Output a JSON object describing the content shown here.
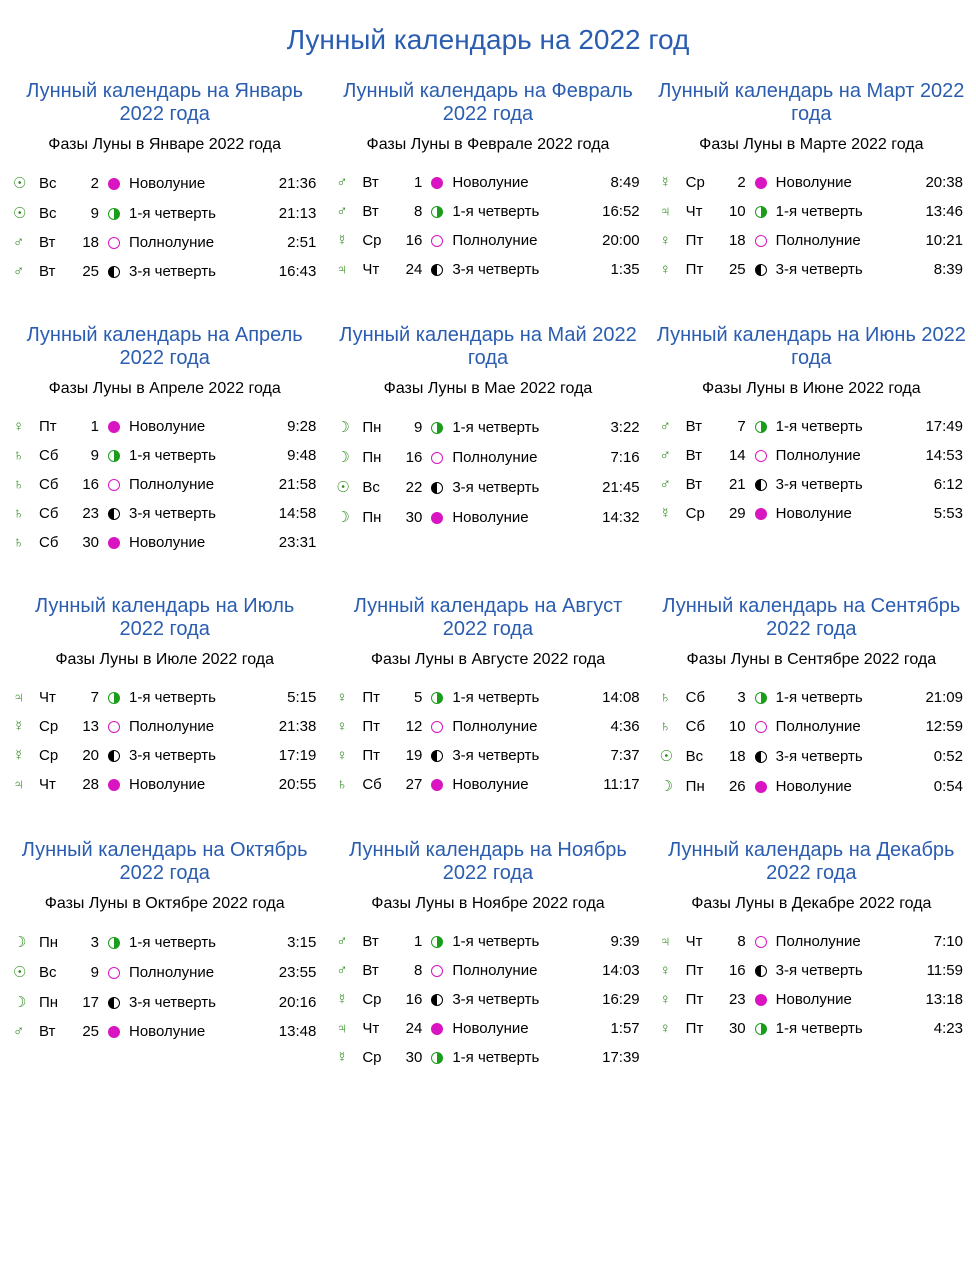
{
  "page_title": "Лунный календарь на 2022 год",
  "colors": {
    "heading": "#2a5db0",
    "planet_symbol": "#2e8b1e",
    "moon_new_fill": "#d815c1",
    "moon_full_ring": "#d815c1",
    "moon_first_fill": "#1a9d1a",
    "moon_third_fill": "#000000",
    "text": "#000000",
    "background": "#ffffff"
  },
  "planet_glyphs": {
    "sun": "☉",
    "moon": "☽",
    "mercury": "☿",
    "venus": "♀",
    "mars": "♂",
    "jupiter": "♃",
    "saturn": "♄"
  },
  "phase_icon_map": {
    "Новолуние": "moon-new",
    "1-я четверть": "moon-first",
    "Полнолуние": "moon-full",
    "3-я четверть": "moon-third"
  },
  "months": [
    {
      "title": "Лунный календарь на Январь 2022 года",
      "subtitle": "Фазы Луны в Январе 2022 года",
      "rows": [
        {
          "planet": "sun",
          "dow": "Вс",
          "day": "2",
          "phase": "Новолуние",
          "time": "21:36"
        },
        {
          "planet": "sun",
          "dow": "Вс",
          "day": "9",
          "phase": "1-я четверть",
          "time": "21:13"
        },
        {
          "planet": "mars",
          "dow": "Вт",
          "day": "18",
          "phase": "Полнолуние",
          "time": "2:51"
        },
        {
          "planet": "mars",
          "dow": "Вт",
          "day": "25",
          "phase": "3-я четверть",
          "time": "16:43"
        }
      ]
    },
    {
      "title": "Лунный календарь на Февраль 2022 года",
      "subtitle": "Фазы Луны в Феврале 2022 года",
      "rows": [
        {
          "planet": "mars",
          "dow": "Вт",
          "day": "1",
          "phase": "Новолуние",
          "time": "8:49"
        },
        {
          "planet": "mars",
          "dow": "Вт",
          "day": "8",
          "phase": "1-я четверть",
          "time": "16:52"
        },
        {
          "planet": "mercury",
          "dow": "Ср",
          "day": "16",
          "phase": "Полнолуние",
          "time": "20:00"
        },
        {
          "planet": "jupiter",
          "dow": "Чт",
          "day": "24",
          "phase": "3-я четверть",
          "time": "1:35"
        }
      ]
    },
    {
      "title": "Лунный календарь на Март 2022 года",
      "subtitle": "Фазы Луны в Марте 2022 года",
      "rows": [
        {
          "planet": "mercury",
          "dow": "Ср",
          "day": "2",
          "phase": "Новолуние",
          "time": "20:38"
        },
        {
          "planet": "jupiter",
          "dow": "Чт",
          "day": "10",
          "phase": "1-я четверть",
          "time": "13:46"
        },
        {
          "planet": "venus",
          "dow": "Пт",
          "day": "18",
          "phase": "Полнолуние",
          "time": "10:21"
        },
        {
          "planet": "venus",
          "dow": "Пт",
          "day": "25",
          "phase": "3-я четверть",
          "time": "8:39"
        }
      ]
    },
    {
      "title": "Лунный календарь на Апрель 2022 года",
      "subtitle": "Фазы Луны в Апреле 2022 года",
      "rows": [
        {
          "planet": "venus",
          "dow": "Пт",
          "day": "1",
          "phase": "Новолуние",
          "time": "9:28"
        },
        {
          "planet": "saturn",
          "dow": "Сб",
          "day": "9",
          "phase": "1-я четверть",
          "time": "9:48"
        },
        {
          "planet": "saturn",
          "dow": "Сб",
          "day": "16",
          "phase": "Полнолуние",
          "time": "21:58"
        },
        {
          "planet": "saturn",
          "dow": "Сб",
          "day": "23",
          "phase": "3-я четверть",
          "time": "14:58"
        },
        {
          "planet": "saturn",
          "dow": "Сб",
          "day": "30",
          "phase": "Новолуние",
          "time": "23:31"
        }
      ]
    },
    {
      "title": "Лунный календарь на Май 2022 года",
      "subtitle": "Фазы Луны в Мае 2022 года",
      "rows": [
        {
          "planet": "moon",
          "dow": "Пн",
          "day": "9",
          "phase": "1-я четверть",
          "time": "3:22"
        },
        {
          "planet": "moon",
          "dow": "Пн",
          "day": "16",
          "phase": "Полнолуние",
          "time": "7:16"
        },
        {
          "planet": "sun",
          "dow": "Вс",
          "day": "22",
          "phase": "3-я четверть",
          "time": "21:45"
        },
        {
          "planet": "moon",
          "dow": "Пн",
          "day": "30",
          "phase": "Новолуние",
          "time": "14:32"
        }
      ]
    },
    {
      "title": "Лунный календарь на Июнь 2022 года",
      "subtitle": "Фазы Луны в Июне 2022 года",
      "rows": [
        {
          "planet": "mars",
          "dow": "Вт",
          "day": "7",
          "phase": "1-я четверть",
          "time": "17:49"
        },
        {
          "planet": "mars",
          "dow": "Вт",
          "day": "14",
          "phase": "Полнолуние",
          "time": "14:53"
        },
        {
          "planet": "mars",
          "dow": "Вт",
          "day": "21",
          "phase": "3-я четверть",
          "time": "6:12"
        },
        {
          "planet": "mercury",
          "dow": "Ср",
          "day": "29",
          "phase": "Новолуние",
          "time": "5:53"
        }
      ]
    },
    {
      "title": "Лунный календарь на Июль 2022 года",
      "subtitle": "Фазы Луны в Июле 2022 года",
      "rows": [
        {
          "planet": "jupiter",
          "dow": "Чт",
          "day": "7",
          "phase": "1-я четверть",
          "time": "5:15"
        },
        {
          "planet": "mercury",
          "dow": "Ср",
          "day": "13",
          "phase": "Полнолуние",
          "time": "21:38"
        },
        {
          "planet": "mercury",
          "dow": "Ср",
          "day": "20",
          "phase": "3-я четверть",
          "time": "17:19"
        },
        {
          "planet": "jupiter",
          "dow": "Чт",
          "day": "28",
          "phase": "Новолуние",
          "time": "20:55"
        }
      ]
    },
    {
      "title": "Лунный календарь на Август 2022 года",
      "subtitle": "Фазы Луны в Августе 2022 года",
      "rows": [
        {
          "planet": "venus",
          "dow": "Пт",
          "day": "5",
          "phase": "1-я четверть",
          "time": "14:08"
        },
        {
          "planet": "venus",
          "dow": "Пт",
          "day": "12",
          "phase": "Полнолуние",
          "time": "4:36"
        },
        {
          "planet": "venus",
          "dow": "Пт",
          "day": "19",
          "phase": "3-я четверть",
          "time": "7:37"
        },
        {
          "planet": "saturn",
          "dow": "Сб",
          "day": "27",
          "phase": "Новолуние",
          "time": "11:17"
        }
      ]
    },
    {
      "title": "Лунный календарь на Сентябрь 2022 года",
      "subtitle": "Фазы Луны в Сентябре 2022 года",
      "rows": [
        {
          "planet": "saturn",
          "dow": "Сб",
          "day": "3",
          "phase": "1-я четверть",
          "time": "21:09"
        },
        {
          "planet": "saturn",
          "dow": "Сб",
          "day": "10",
          "phase": "Полнолуние",
          "time": "12:59"
        },
        {
          "planet": "sun",
          "dow": "Вс",
          "day": "18",
          "phase": "3-я четверть",
          "time": "0:52"
        },
        {
          "planet": "moon",
          "dow": "Пн",
          "day": "26",
          "phase": "Новолуние",
          "time": "0:54"
        }
      ]
    },
    {
      "title": "Лунный календарь на Октябрь 2022 года",
      "subtitle": "Фазы Луны в Октябре 2022 года",
      "rows": [
        {
          "planet": "moon",
          "dow": "Пн",
          "day": "3",
          "phase": "1-я четверть",
          "time": "3:15"
        },
        {
          "planet": "sun",
          "dow": "Вс",
          "day": "9",
          "phase": "Полнолуние",
          "time": "23:55"
        },
        {
          "planet": "moon",
          "dow": "Пн",
          "day": "17",
          "phase": "3-я четверть",
          "time": "20:16"
        },
        {
          "planet": "mars",
          "dow": "Вт",
          "day": "25",
          "phase": "Новолуние",
          "time": "13:48"
        }
      ]
    },
    {
      "title": "Лунный календарь на Ноябрь 2022 года",
      "subtitle": "Фазы Луны в Ноябре 2022 года",
      "rows": [
        {
          "planet": "mars",
          "dow": "Вт",
          "day": "1",
          "phase": "1-я четверть",
          "time": "9:39"
        },
        {
          "planet": "mars",
          "dow": "Вт",
          "day": "8",
          "phase": "Полнолуние",
          "time": "14:03"
        },
        {
          "planet": "mercury",
          "dow": "Ср",
          "day": "16",
          "phase": "3-я четверть",
          "time": "16:29"
        },
        {
          "planet": "jupiter",
          "dow": "Чт",
          "day": "24",
          "phase": "Новолуние",
          "time": "1:57"
        },
        {
          "planet": "mercury",
          "dow": "Ср",
          "day": "30",
          "phase": "1-я четверть",
          "time": "17:39"
        }
      ]
    },
    {
      "title": "Лунный календарь на Декабрь 2022 года",
      "subtitle": "Фазы Луны в Декабре 2022 года",
      "rows": [
        {
          "planet": "jupiter",
          "dow": "Чт",
          "day": "8",
          "phase": "Полнолуние",
          "time": "7:10"
        },
        {
          "planet": "venus",
          "dow": "Пт",
          "day": "16",
          "phase": "3-я четверть",
          "time": "11:59"
        },
        {
          "planet": "venus",
          "dow": "Пт",
          "day": "23",
          "phase": "Новолуние",
          "time": "13:18"
        },
        {
          "planet": "venus",
          "dow": "Пт",
          "day": "30",
          "phase": "1-я четверть",
          "time": "4:23"
        }
      ]
    }
  ]
}
